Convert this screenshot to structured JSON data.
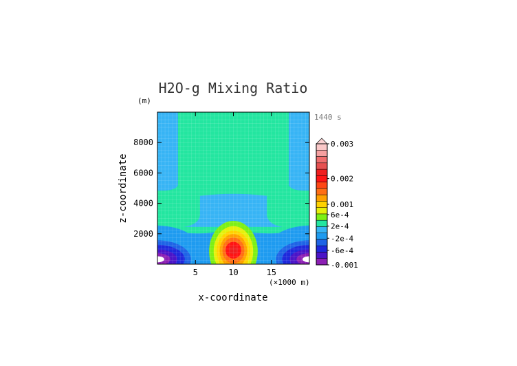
{
  "chart_data": {
    "type": "heatmap",
    "title": "H2O-g Mixing Ratio",
    "time_label": "1440 s",
    "xlabel": "x-coordinate",
    "ylabel": "z-coordinate",
    "x_unit_label": "(×1000 m)",
    "y_unit_label": "(m)",
    "xlim": [
      0,
      20
    ],
    "ylim": [
      0,
      10000
    ],
    "x_ticks": [
      5,
      10,
      15
    ],
    "x_tick_labels": [
      "5",
      "10",
      "15"
    ],
    "y_ticks": [
      2000,
      4000,
      6000,
      8000
    ],
    "y_tick_labels": [
      "2000",
      "4000",
      "6000",
      "8000"
    ],
    "field_description": "contoured field over x in [0,20] (×1000 m), z in [0,10000] m",
    "features": [
      {
        "kind": "maximum",
        "x": 10,
        "z": 900,
        "value": 0.002
      },
      {
        "kind": "minimum",
        "x": 0.2,
        "z": 350,
        "value": -0.001
      },
      {
        "kind": "minimum",
        "x": 19.8,
        "z": 350,
        "value": -0.001
      },
      {
        "kind": "plateau",
        "x_range": [
          2.5,
          17.5
        ],
        "z_range": [
          4500,
          10000
        ],
        "value": 0.0001
      },
      {
        "kind": "plateau",
        "x_range": [
          0,
          20
        ],
        "z_range": [
          2500,
          4900
        ],
        "value": 0.0001
      }
    ],
    "colorbar": {
      "tick_labels": [
        "0.003",
        "0.002",
        "0.001",
        "6e-4",
        "2e-4",
        "-2e-4",
        "-6e-4",
        "-0.001"
      ],
      "colors": [
        "#8c1fb4",
        "#4b14c8",
        "#1e28dc",
        "#1e64e6",
        "#1e9bf0",
        "#37b4f5",
        "#23e6a0",
        "#7df014",
        "#e6f00a",
        "#ffd200",
        "#ffa000",
        "#ff6e14",
        "#ff4614",
        "#ff1414",
        "#f01e1e",
        "#e65050",
        "#f06e6e",
        "#f5a0a0",
        "#fac8c8"
      ],
      "extend_top": true
    }
  }
}
